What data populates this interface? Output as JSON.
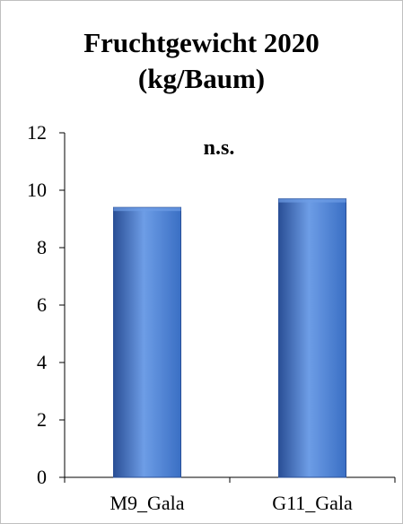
{
  "chart_data": {
    "type": "bar",
    "title_line1": "Fruchtgewicht 2020",
    "title_line2": "(kg/Baum)",
    "categories": [
      "M9_Gala",
      "G11_Gala"
    ],
    "values": [
      9.4,
      9.7
    ],
    "ylim": [
      0,
      12
    ],
    "yticks": [
      0,
      2,
      4,
      6,
      8,
      10,
      12
    ],
    "annotation": "n.s.",
    "xlabel": "",
    "ylabel": "",
    "grid": false,
    "legend": false,
    "bar_color": "#3a6fc4",
    "bar_color_light": "#6d9de6",
    "bar_color_dark": "#2a4f96"
  }
}
